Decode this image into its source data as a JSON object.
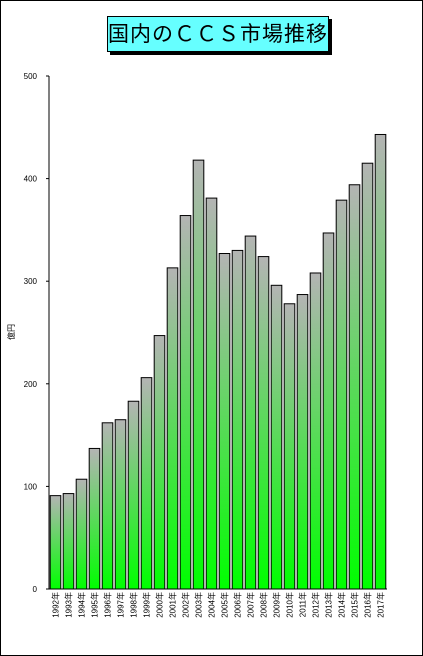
{
  "title": "国内のＣＣＳ市場推移",
  "chart_data": {
    "type": "bar",
    "title": "国内のＣＣＳ市場推移",
    "ylabel": "億円",
    "xlabel": "",
    "ylim": [
      0,
      500
    ],
    "yticks": [
      0,
      100,
      200,
      300,
      400,
      500
    ],
    "grid": false,
    "categories": [
      "1992年",
      "1993年",
      "1994年",
      "1995年",
      "1996年",
      "1997年",
      "1998年",
      "1999年",
      "2000年",
      "2001年",
      "2002年",
      "2003年",
      "2004年",
      "2005年",
      "2006年",
      "2007年",
      "2008年",
      "2009年",
      "2010年",
      "2011年",
      "2012年",
      "2013年",
      "2014年",
      "2015年",
      "2016年",
      "2017年"
    ],
    "values": [
      91,
      93,
      107,
      137,
      162,
      165,
      183,
      206,
      247,
      313,
      364,
      418,
      381,
      327,
      330,
      344,
      324,
      296,
      278,
      287,
      308,
      347,
      379,
      394,
      415,
      443
    ],
    "colors": {
      "bar_top": "#b4b4b4",
      "bar_bottom": "#00ff00",
      "title_bg": "#66ffff"
    }
  }
}
